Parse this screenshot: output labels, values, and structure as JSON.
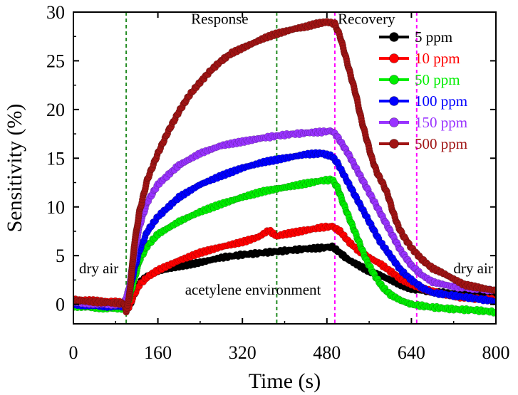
{
  "chart_data": {
    "type": "scatter",
    "xlabel": "Time (s)",
    "ylabel": "Sensitivity (%)",
    "xlim": [
      0,
      800
    ],
    "ylim": [
      -2,
      30
    ],
    "xticks": [
      0,
      160,
      320,
      480,
      640,
      800
    ],
    "yticks": [
      0,
      5,
      10,
      15,
      20,
      25,
      30
    ],
    "grid": false,
    "legend_position": "top-right",
    "vlines": [
      {
        "x": 100,
        "color": "#228b22"
      },
      {
        "x": 385,
        "color": "#228b22"
      },
      {
        "x": 495,
        "color": "#ff00ff"
      },
      {
        "x": 650,
        "color": "#ff00ff"
      }
    ],
    "annotations": [
      {
        "text": "Response",
        "x": 277,
        "y": 28.8,
        "color": "#228b22"
      },
      {
        "text": "Recovery",
        "x": 555,
        "y": 28.8,
        "color": "#ff00ff"
      },
      {
        "text": "dry air",
        "x": 48,
        "y": 3.2,
        "color": "#000000"
      },
      {
        "text": "acetylene environment",
        "x": 340,
        "y": 1.0,
        "color": "#000000"
      },
      {
        "text": "dry air",
        "x": 757,
        "y": 3.2,
        "color": "#000000"
      }
    ],
    "series": [
      {
        "name": "5 ppm",
        "color": "#000000",
        "points": [
          [
            0,
            0.3
          ],
          [
            30,
            0.2
          ],
          [
            60,
            0.1
          ],
          [
            95,
            0.0
          ],
          [
            105,
            -0.4
          ],
          [
            115,
            1.0
          ],
          [
            125,
            2.2
          ],
          [
            140,
            2.9
          ],
          [
            160,
            3.4
          ],
          [
            200,
            3.9
          ],
          [
            240,
            4.3
          ],
          [
            280,
            4.8
          ],
          [
            320,
            5.1
          ],
          [
            360,
            5.3
          ],
          [
            400,
            5.5
          ],
          [
            440,
            5.7
          ],
          [
            470,
            5.8
          ],
          [
            490,
            5.9
          ],
          [
            500,
            5.5
          ],
          [
            520,
            4.6
          ],
          [
            540,
            4.0
          ],
          [
            560,
            3.4
          ],
          [
            580,
            3.0
          ],
          [
            600,
            2.5
          ],
          [
            620,
            2.0
          ],
          [
            640,
            1.6
          ],
          [
            680,
            1.3
          ],
          [
            720,
            1.1
          ],
          [
            760,
            1.0
          ],
          [
            800,
            0.9
          ]
        ]
      },
      {
        "name": "10 ppm",
        "color": "#ff0000",
        "points": [
          [
            0,
            0.5
          ],
          [
            30,
            0.4
          ],
          [
            60,
            0.3
          ],
          [
            95,
            0.2
          ],
          [
            105,
            -0.3
          ],
          [
            115,
            1.0
          ],
          [
            125,
            2.0
          ],
          [
            140,
            2.8
          ],
          [
            160,
            3.5
          ],
          [
            200,
            4.5
          ],
          [
            240,
            5.3
          ],
          [
            280,
            5.9
          ],
          [
            320,
            6.4
          ],
          [
            350,
            6.9
          ],
          [
            370,
            7.6
          ],
          [
            385,
            7.0
          ],
          [
            400,
            7.2
          ],
          [
            440,
            7.6
          ],
          [
            470,
            7.9
          ],
          [
            490,
            8.0
          ],
          [
            505,
            7.5
          ],
          [
            520,
            6.5
          ],
          [
            540,
            5.5
          ],
          [
            560,
            4.8
          ],
          [
            580,
            4.2
          ],
          [
            600,
            3.4
          ],
          [
            620,
            2.6
          ],
          [
            640,
            2.0
          ],
          [
            680,
            1.3
          ],
          [
            720,
            0.8
          ],
          [
            760,
            0.6
          ],
          [
            800,
            0.5
          ]
        ]
      },
      {
        "name": "50 ppm",
        "color": "#00ee00",
        "points": [
          [
            0,
            -0.2
          ],
          [
            30,
            -0.3
          ],
          [
            60,
            -0.4
          ],
          [
            95,
            -0.4
          ],
          [
            105,
            0.5
          ],
          [
            115,
            2.5
          ],
          [
            125,
            4.5
          ],
          [
            140,
            6.0
          ],
          [
            160,
            7.2
          ],
          [
            200,
            8.5
          ],
          [
            240,
            9.5
          ],
          [
            280,
            10.3
          ],
          [
            320,
            11.0
          ],
          [
            360,
            11.6
          ],
          [
            400,
            12.0
          ],
          [
            440,
            12.4
          ],
          [
            470,
            12.7
          ],
          [
            490,
            12.8
          ],
          [
            500,
            12.0
          ],
          [
            510,
            10.5
          ],
          [
            525,
            8.5
          ],
          [
            540,
            6.5
          ],
          [
            555,
            4.5
          ],
          [
            570,
            3.0
          ],
          [
            585,
            1.8
          ],
          [
            600,
            1.0
          ],
          [
            620,
            0.4
          ],
          [
            640,
            0.0
          ],
          [
            680,
            -0.3
          ],
          [
            720,
            -0.5
          ],
          [
            760,
            -0.6
          ],
          [
            800,
            -0.8
          ]
        ]
      },
      {
        "name": "100 ppm",
        "color": "#0000ff",
        "points": [
          [
            0,
            0.0
          ],
          [
            30,
            -0.1
          ],
          [
            60,
            -0.2
          ],
          [
            95,
            -0.2
          ],
          [
            105,
            1.0
          ],
          [
            115,
            3.5
          ],
          [
            125,
            5.5
          ],
          [
            140,
            7.5
          ],
          [
            160,
            9.0
          ],
          [
            200,
            11.0
          ],
          [
            240,
            12.3
          ],
          [
            280,
            13.2
          ],
          [
            320,
            14.0
          ],
          [
            360,
            14.6
          ],
          [
            400,
            15.0
          ],
          [
            440,
            15.4
          ],
          [
            470,
            15.5
          ],
          [
            490,
            15.2
          ],
          [
            500,
            14.5
          ],
          [
            520,
            12.5
          ],
          [
            540,
            10.5
          ],
          [
            560,
            8.5
          ],
          [
            580,
            6.5
          ],
          [
            600,
            5.0
          ],
          [
            620,
            3.5
          ],
          [
            640,
            2.5
          ],
          [
            660,
            1.7
          ],
          [
            680,
            1.2
          ],
          [
            720,
            0.9
          ],
          [
            760,
            0.6
          ],
          [
            800,
            0.3
          ]
        ]
      },
      {
        "name": "150 ppm",
        "color": "#9933ff",
        "points": [
          [
            0,
            0.2
          ],
          [
            30,
            0.1
          ],
          [
            60,
            0.0
          ],
          [
            95,
            0.0
          ],
          [
            105,
            1.5
          ],
          [
            115,
            5.0
          ],
          [
            125,
            8.0
          ],
          [
            140,
            10.5
          ],
          [
            160,
            12.3
          ],
          [
            200,
            14.3
          ],
          [
            240,
            15.5
          ],
          [
            280,
            16.3
          ],
          [
            320,
            16.7
          ],
          [
            360,
            17.1
          ],
          [
            400,
            17.4
          ],
          [
            440,
            17.6
          ],
          [
            470,
            17.7
          ],
          [
            490,
            17.8
          ],
          [
            500,
            17.2
          ],
          [
            520,
            15.5
          ],
          [
            540,
            13.5
          ],
          [
            560,
            11.5
          ],
          [
            580,
            9.5
          ],
          [
            600,
            7.5
          ],
          [
            620,
            5.5
          ],
          [
            640,
            4.0
          ],
          [
            660,
            3.0
          ],
          [
            680,
            2.3
          ],
          [
            720,
            1.8
          ],
          [
            760,
            1.6
          ],
          [
            800,
            1.4
          ]
        ]
      },
      {
        "name": "500 ppm",
        "color": "#a01414",
        "points": [
          [
            0,
            0.4
          ],
          [
            30,
            0.3
          ],
          [
            60,
            0.2
          ],
          [
            95,
            0.1
          ],
          [
            100,
            -0.7
          ],
          [
            105,
            0.5
          ],
          [
            110,
            3.0
          ],
          [
            115,
            6.0
          ],
          [
            125,
            9.5
          ],
          [
            140,
            12.8
          ],
          [
            160,
            15.5
          ],
          [
            180,
            17.8
          ],
          [
            200,
            19.8
          ],
          [
            220,
            21.5
          ],
          [
            240,
            22.8
          ],
          [
            260,
            24.0
          ],
          [
            280,
            25.0
          ],
          [
            300,
            25.8
          ],
          [
            320,
            26.3
          ],
          [
            340,
            26.8
          ],
          [
            360,
            27.3
          ],
          [
            380,
            27.7
          ],
          [
            400,
            28.0
          ],
          [
            420,
            28.3
          ],
          [
            440,
            28.5
          ],
          [
            460,
            28.8
          ],
          [
            480,
            29.0
          ],
          [
            495,
            28.8
          ],
          [
            505,
            27.5
          ],
          [
            515,
            25.5
          ],
          [
            525,
            23.5
          ],
          [
            535,
            21.5
          ],
          [
            545,
            19.0
          ],
          [
            555,
            17.0
          ],
          [
            565,
            15.0
          ],
          [
            575,
            13.5
          ],
          [
            585,
            12.5
          ],
          [
            595,
            11.3
          ],
          [
            605,
            9.5
          ],
          [
            615,
            8.0
          ],
          [
            625,
            7.0
          ],
          [
            640,
            5.8
          ],
          [
            660,
            4.6
          ],
          [
            680,
            3.7
          ],
          [
            700,
            3.2
          ],
          [
            720,
            2.6
          ],
          [
            740,
            2.0
          ],
          [
            760,
            1.8
          ],
          [
            780,
            1.6
          ],
          [
            800,
            1.4
          ]
        ]
      }
    ]
  }
}
